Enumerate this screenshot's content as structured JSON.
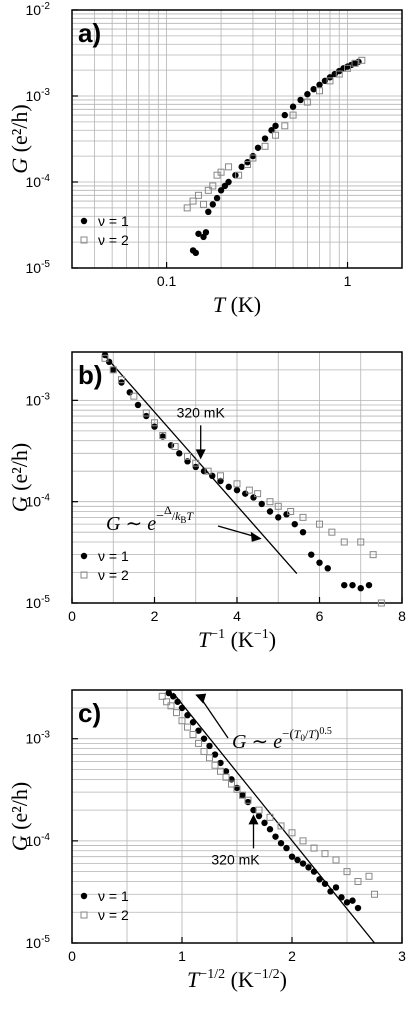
{
  "chart_data": [
    {
      "id": "a",
      "type": "scatter",
      "panel_label": "a)",
      "xscale": "log",
      "yscale": "log",
      "xlim": [
        0.03,
        2.0
      ],
      "ylim": [
        1e-05,
        0.01
      ],
      "xticks": [
        {
          "v": 0.1,
          "label": "0.1"
        },
        {
          "v": 1,
          "label": "1"
        }
      ],
      "yticks": [
        {
          "v": 1e-05,
          "base": "10",
          "exp": "-5"
        },
        {
          "v": 0.0001,
          "base": "10",
          "exp": "-4"
        },
        {
          "v": 0.001,
          "base": "10",
          "exp": "-3"
        },
        {
          "v": 0.01,
          "base": "10",
          "exp": "-2"
        }
      ],
      "xlabel": {
        "var": "T",
        "unit": " (K)"
      },
      "ylabel": {
        "var": "G",
        "unit": " (e²/h)"
      },
      "grid": true,
      "legend_position": "bottom-left",
      "series": [
        {
          "name": "ν = 1",
          "marker": "filled-circle",
          "x": [
            0.14,
            0.145,
            0.15,
            0.16,
            0.165,
            0.17,
            0.18,
            0.19,
            0.2,
            0.21,
            0.22,
            0.24,
            0.26,
            0.28,
            0.3,
            0.32,
            0.35,
            0.38,
            0.4,
            0.45,
            0.5,
            0.55,
            0.6,
            0.65,
            0.7,
            0.75,
            0.8,
            0.85,
            0.9,
            0.95,
            1.0,
            1.05,
            1.1,
            1.15
          ],
          "y": [
            1.6e-05,
            1.5e-05,
            2.5e-05,
            2.3e-05,
            2.6e-05,
            4.5e-05,
            5.5e-05,
            6.5e-05,
            8e-05,
            9e-05,
            0.0001,
            0.00012,
            0.00015,
            0.00017,
            0.0002,
            0.00025,
            0.00032,
            0.0004,
            0.00045,
            0.0006,
            0.00075,
            0.0009,
            0.00105,
            0.0012,
            0.00135,
            0.0015,
            0.00165,
            0.0018,
            0.00195,
            0.0021,
            0.0022,
            0.0023,
            0.0024,
            0.0025
          ]
        },
        {
          "name": "ν = 2",
          "marker": "open-square",
          "x": [
            0.13,
            0.14,
            0.15,
            0.16,
            0.17,
            0.18,
            0.19,
            0.2,
            0.22,
            0.25,
            0.28,
            0.3,
            0.35,
            0.4,
            0.45,
            0.5,
            0.6,
            0.7,
            0.8,
            0.9,
            1.0,
            1.1,
            1.2
          ],
          "y": [
            5e-05,
            6e-05,
            7e-05,
            5.5e-05,
            8e-05,
            9e-05,
            0.00012,
            0.00013,
            0.00015,
            0.00012,
            0.00016,
            0.00019,
            0.00026,
            0.00035,
            0.00045,
            0.0006,
            0.00085,
            0.00115,
            0.0015,
            0.0018,
            0.0021,
            0.0024,
            0.0026
          ]
        }
      ]
    },
    {
      "id": "b",
      "type": "scatter",
      "panel_label": "b)",
      "xscale": "linear",
      "yscale": "log",
      "xlim": [
        0,
        8
      ],
      "ylim": [
        1e-05,
        0.003
      ],
      "xticks": [
        {
          "v": 0,
          "label": "0"
        },
        {
          "v": 2,
          "label": "2"
        },
        {
          "v": 4,
          "label": "4"
        },
        {
          "v": 6,
          "label": "6"
        },
        {
          "v": 8,
          "label": "8"
        }
      ],
      "yticks": [
        {
          "v": 1e-05,
          "base": "10",
          "exp": "-5"
        },
        {
          "v": 0.0001,
          "base": "10",
          "exp": "-4"
        },
        {
          "v": 0.001,
          "base": "10",
          "exp": "-3"
        }
      ],
      "xlabel": {
        "var": "T",
        "sup": "−1",
        "unit": " (K",
        "unitsup": "−1",
        "unitend": ")"
      },
      "ylabel": {
        "var": "G",
        "unit": " (e²/h)"
      },
      "grid": true,
      "legend_position": "bottom-left",
      "fit_line": {
        "x": [
          0.75,
          5.45
        ],
        "y": [
          0.0029,
          1.95e-05
        ]
      },
      "annotations": [
        {
          "text": "320 mK",
          "data_x": 3.12,
          "data_y": 0.00025
        },
        {
          "formula": "activated",
          "text_main": "G ∼ e",
          "text_exp": "−Δ/(k_B T)",
          "data_x": 4.6,
          "data_y": 4.3e-05
        }
      ],
      "series": [
        {
          "name": "ν = 1",
          "marker": "filled-circle",
          "x": [
            0.8,
            0.9,
            1.0,
            1.2,
            1.4,
            1.6,
            1.8,
            2.0,
            2.2,
            2.4,
            2.6,
            2.8,
            3.0,
            3.2,
            3.4,
            3.6,
            3.8,
            4.0,
            4.2,
            4.4,
            4.6,
            4.8,
            5.0,
            5.2,
            5.4,
            5.6,
            5.8,
            6.0,
            6.2,
            6.6,
            6.8,
            7.0,
            7.2
          ],
          "y": [
            0.0028,
            0.0024,
            0.002,
            0.0015,
            0.0012,
            0.0009,
            0.0007,
            0.00055,
            0.00044,
            0.00036,
            0.0003,
            0.00025,
            0.00022,
            0.0002,
            0.00018,
            0.00016,
            0.00014,
            0.00013,
            0.00012,
            0.00011,
            9.5e-05,
            8e-05,
            7e-05,
            7.5e-05,
            6e-05,
            5e-05,
            3e-05,
            2.5e-05,
            2.2e-05,
            1.5e-05,
            1.5e-05,
            1.4e-05,
            1.5e-05
          ]
        },
        {
          "name": "ν = 2",
          "marker": "open-square",
          "x": [
            0.8,
            1.0,
            1.2,
            1.5,
            1.8,
            2.0,
            2.2,
            2.5,
            2.8,
            3.0,
            3.3,
            3.6,
            4.0,
            4.3,
            4.5,
            4.8,
            5.0,
            5.3,
            5.6,
            6.0,
            6.3,
            6.6,
            7.0,
            7.3,
            7.5
          ],
          "y": [
            0.0026,
            0.002,
            0.0016,
            0.0011,
            0.00075,
            0.0006,
            0.00045,
            0.00035,
            0.00028,
            0.00024,
            0.0002,
            0.00018,
            0.00015,
            0.00013,
            0.00012,
            0.0001,
            9e-05,
            8e-05,
            7e-05,
            6e-05,
            5e-05,
            4e-05,
            4e-05,
            3e-05,
            1e-05
          ]
        }
      ]
    },
    {
      "id": "c",
      "type": "scatter",
      "panel_label": "c)",
      "xscale": "linear",
      "yscale": "log",
      "xlim": [
        0,
        3
      ],
      "ylim": [
        1e-05,
        0.003
      ],
      "xticks": [
        {
          "v": 0,
          "label": "0"
        },
        {
          "v": 1,
          "label": "1"
        },
        {
          "v": 2,
          "label": "2"
        },
        {
          "v": 3,
          "label": "3"
        }
      ],
      "yticks": [
        {
          "v": 1e-05,
          "base": "10",
          "exp": "-5"
        },
        {
          "v": 0.0001,
          "base": "10",
          "exp": "-4"
        },
        {
          "v": 0.001,
          "base": "10",
          "exp": "-3"
        }
      ],
      "xlabel": {
        "var": "T",
        "sup": "−1/2",
        "unit": " (K",
        "unitsup": "−1/2",
        "unitend": ")"
      },
      "ylabel": {
        "var": "G",
        "unit": " (e²/h)"
      },
      "grid": true,
      "legend_position": "bottom-left",
      "fit_line": {
        "x": [
          0.92,
          2.75
        ],
        "y": [
          0.0028,
          1e-05
        ]
      },
      "annotations": [
        {
          "text": "320 mK",
          "data_x": 1.65,
          "data_y": 0.00019
        },
        {
          "formula": "vrh",
          "text_main": "G ∼ e",
          "text_exp": "−(T₀/T)^0.5",
          "data_x": 1.12,
          "data_y": 0.0027
        }
      ],
      "series": [
        {
          "name": "ν = 1",
          "marker": "filled-circle",
          "x": [
            0.88,
            0.92,
            0.96,
            1.0,
            1.05,
            1.1,
            1.15,
            1.2,
            1.25,
            1.3,
            1.35,
            1.4,
            1.45,
            1.5,
            1.55,
            1.6,
            1.65,
            1.7,
            1.75,
            1.8,
            1.85,
            1.9,
            1.95,
            2.0,
            2.05,
            2.1,
            2.15,
            2.2,
            2.25,
            2.3,
            2.35,
            2.4,
            2.45,
            2.5,
            2.55,
            2.6
          ],
          "y": [
            0.0028,
            0.0026,
            0.0023,
            0.002,
            0.0017,
            0.00145,
            0.0012,
            0.001,
            0.00085,
            0.0007,
            0.00058,
            0.00048,
            0.0004,
            0.00033,
            0.00028,
            0.00024,
            0.0002,
            0.000175,
            0.00015,
            0.00013,
            0.00011,
            9.5e-05,
            8.5e-05,
            7e-05,
            6.5e-05,
            6e-05,
            5.5e-05,
            5e-05,
            4.2e-05,
            3.8e-05,
            3.2e-05,
            3.5e-05,
            2.8e-05,
            2.5e-05,
            2.6e-05,
            2.2e-05
          ]
        },
        {
          "name": "ν = 2",
          "marker": "open-square",
          "x": [
            0.82,
            0.86,
            0.9,
            0.95,
            1.0,
            1.05,
            1.1,
            1.15,
            1.2,
            1.25,
            1.3,
            1.35,
            1.4,
            1.45,
            1.5,
            1.55,
            1.6,
            1.7,
            1.8,
            1.9,
            2.0,
            2.1,
            2.2,
            2.3,
            2.4,
            2.5,
            2.6,
            2.7,
            2.75
          ],
          "y": [
            0.0026,
            0.0023,
            0.0021,
            0.0018,
            0.0015,
            0.0013,
            0.0011,
            0.0009,
            0.00075,
            0.00065,
            0.00055,
            0.00048,
            0.00042,
            0.00036,
            0.00032,
            0.00028,
            0.00025,
            0.0002,
            0.00017,
            0.00014,
            0.00012,
            0.0001,
            8.5e-05,
            7.5e-05,
            6.5e-05,
            5e-05,
            4e-05,
            4.5e-05,
            3e-05
          ]
        }
      ]
    }
  ]
}
